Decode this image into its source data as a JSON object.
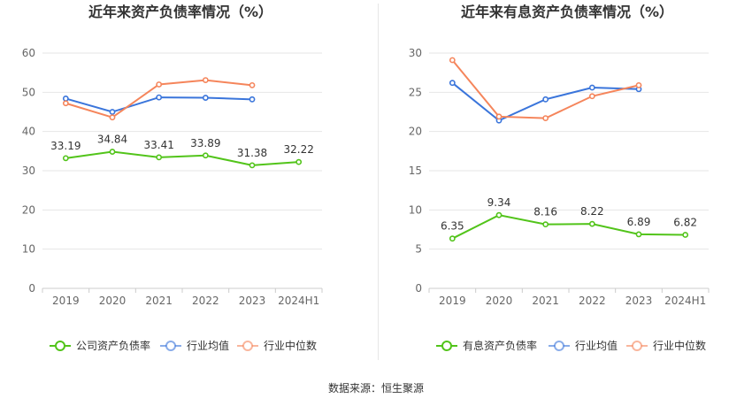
{
  "source_text": "数据来源：恒生聚源",
  "colors": {
    "company": "#52c41a",
    "avg": "#3a75db",
    "median": "#f5855b",
    "axis_text": "#666666",
    "title": "#333333",
    "grid": "#e6e6e6"
  },
  "chart_data": [
    {
      "type": "line",
      "title": "近年来资产负债率情况（%）",
      "categories": [
        "2019",
        "2020",
        "2021",
        "2022",
        "2023",
        "2024H1"
      ],
      "ylim": [
        0,
        60
      ],
      "yticks": [
        0,
        10,
        20,
        30,
        40,
        50,
        60
      ],
      "grid": true,
      "legend_position": "bottom",
      "series": [
        {
          "name": "公司资产负债率",
          "key": "company",
          "values": [
            33.19,
            34.84,
            33.41,
            33.89,
            31.38,
            32.22
          ],
          "show_labels": true
        },
        {
          "name": "行业均值",
          "key": "avg",
          "values": [
            48.4,
            45.0,
            48.7,
            48.6,
            48.2,
            null
          ],
          "show_labels": false
        },
        {
          "name": "行业中位数",
          "key": "median",
          "values": [
            47.2,
            43.6,
            52.0,
            53.1,
            51.8,
            null
          ],
          "show_labels": false
        }
      ]
    },
    {
      "type": "line",
      "title": "近年来有息资产负债率情况（%）",
      "categories": [
        "2019",
        "2020",
        "2021",
        "2022",
        "2023",
        "2024H1"
      ],
      "ylim": [
        0,
        30
      ],
      "yticks": [
        0,
        5,
        10,
        15,
        20,
        25,
        30
      ],
      "grid": true,
      "legend_position": "bottom",
      "series": [
        {
          "name": "有息资产负债率",
          "key": "company",
          "values": [
            6.35,
            9.34,
            8.16,
            8.22,
            6.89,
            6.82
          ],
          "show_labels": true
        },
        {
          "name": "行业均值",
          "key": "avg",
          "values": [
            26.2,
            21.4,
            24.1,
            25.6,
            25.4,
            null
          ],
          "show_labels": false
        },
        {
          "name": "行业中位数",
          "key": "median",
          "values": [
            29.1,
            21.9,
            21.7,
            24.5,
            25.9,
            null
          ],
          "show_labels": false
        }
      ]
    }
  ]
}
